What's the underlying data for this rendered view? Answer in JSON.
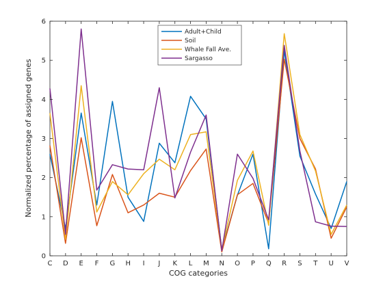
{
  "chart_data": {
    "type": "line",
    "xlabel": "COG categories",
    "ylabel": "Normalized percentage of assigned genes",
    "ylim": [
      0,
      6
    ],
    "yticks": [
      0,
      1,
      2,
      3,
      4,
      5,
      6
    ],
    "categories": [
      "C",
      "D",
      "E",
      "F",
      "G",
      "H",
      "I",
      "J",
      "K",
      "L",
      "M",
      "N",
      "O",
      "P",
      "Q",
      "R",
      "S",
      "T",
      "U",
      "V"
    ],
    "legend_position": "top-center",
    "grid": false,
    "series": [
      {
        "name": "Adult+Child",
        "color": "#0072BD",
        "values": [
          2.6,
          0.7,
          3.65,
          1.3,
          3.95,
          1.5,
          0.88,
          2.88,
          2.38,
          4.08,
          3.5,
          0.15,
          1.55,
          2.6,
          0.18,
          5.25,
          2.55,
          1.58,
          0.7,
          1.9
        ]
      },
      {
        "name": "Soil",
        "color": "#D95319",
        "values": [
          2.82,
          0.32,
          3.02,
          0.77,
          2.08,
          1.1,
          1.3,
          1.6,
          1.5,
          2.18,
          2.73,
          0.1,
          1.56,
          1.85,
          0.83,
          5.03,
          3.0,
          2.22,
          0.45,
          1.25
        ]
      },
      {
        "name": "Whale Fall Ave.",
        "color": "#EDB120",
        "values": [
          3.65,
          0.42,
          4.35,
          1.12,
          1.9,
          1.56,
          2.1,
          2.47,
          2.2,
          3.1,
          3.17,
          0.15,
          1.93,
          2.68,
          0.78,
          5.68,
          3.1,
          2.17,
          0.55,
          1.3
        ]
      },
      {
        "name": "Sargasso",
        "color": "#7E2F8E",
        "values": [
          4.28,
          0.55,
          5.8,
          1.68,
          2.33,
          2.22,
          2.2,
          4.3,
          1.48,
          2.65,
          3.6,
          0.13,
          2.6,
          1.98,
          0.92,
          5.38,
          2.68,
          0.87,
          0.76,
          0.75
        ]
      }
    ]
  }
}
